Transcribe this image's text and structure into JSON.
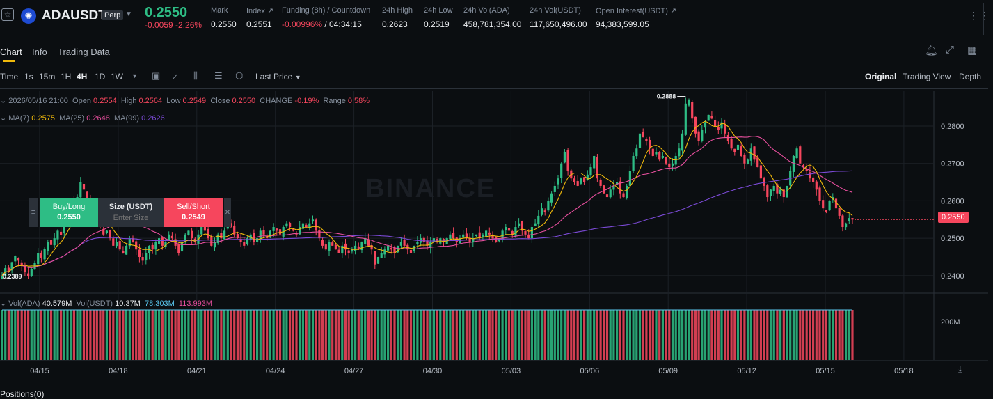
{
  "header": {
    "symbol": "ADAUSDT",
    "badge": "Perp",
    "last_price": "0.2550",
    "change": "-0.0059 -2.26%",
    "stats": [
      {
        "label": "Mark",
        "value": "0.2550",
        "value_color": "#eaecef"
      },
      {
        "label": "Index ↗",
        "value": "0.2551",
        "value_color": "#eaecef"
      },
      {
        "label": "Funding (8h) / Countdown",
        "value": "-0.00996%",
        "value2": " / 04:34:15",
        "value_color": "#f6465d"
      },
      {
        "label": "24h High",
        "value": "0.2623",
        "value_color": "#eaecef"
      },
      {
        "label": "24h Low",
        "value": "0.2519",
        "value_color": "#eaecef"
      },
      {
        "label": "24h Vol(ADA)",
        "value": "458,781,354.00",
        "value_color": "#eaecef"
      },
      {
        "label": "24h Vol(USDT)",
        "value": "117,650,496.00",
        "value_color": "#eaecef"
      },
      {
        "label": "Open Interest(USDT) ↗",
        "value": "94,383,599.05",
        "value_color": "#eaecef"
      }
    ]
  },
  "tabs": [
    "Chart",
    "Info",
    "Trading Data"
  ],
  "toolbar": {
    "intervals": [
      "Time",
      "1s",
      "15m",
      "1H",
      "4H",
      "1D",
      "1W"
    ],
    "active_interval": "4H",
    "price_type": "Last Price",
    "views": [
      "Original",
      "Trading View",
      "Depth"
    ],
    "active_view": "Original"
  },
  "ohlc": {
    "date": "2026/05/16 21:00",
    "open_label": "Open",
    "open": "0.2554",
    "high_label": "High",
    "high": "0.2564",
    "low_label": "Low",
    "low": "0.2549",
    "close_label": "Close",
    "close": "0.2550",
    "change_label": "CHANGE",
    "change": "-0.19%",
    "range_label": "Range",
    "range": "0.58%"
  },
  "ma": {
    "ma7_label": "MA(7)",
    "ma7": "0.2575",
    "ma25_label": "MA(25)",
    "ma25": "0.2648",
    "ma99_label": "MA(99)",
    "ma99": "0.2626"
  },
  "volume_info": {
    "vol_ada_label": "Vol(ADA)",
    "vol_ada": "40.579M",
    "vol_usdt_label": "Vol(USDT)",
    "vol_usdt": "10.37M",
    "vol_ma1": "78.303M",
    "vol_ma2": "113.993M"
  },
  "order_widget": {
    "buy_label": "Buy/Long",
    "buy_price": "0.2550",
    "size_label": "Size (USDT)",
    "size_placeholder": "Enter Size",
    "sell_label": "Sell/Short",
    "sell_price": "0.2549"
  },
  "watermark": "BINANCE",
  "bottom_partial": "Positions(0)",
  "colors": {
    "up": "#2ebd85",
    "down": "#f6465d",
    "ma7": "#f0b90b",
    "ma25": "#e84f9e",
    "ma99": "#7b4ad6",
    "vol_ma1": "#5ac8f0",
    "vol_ma2": "#e84f9e"
  },
  "chart_data": {
    "type": "candlestick",
    "interval": "4H",
    "x_ticks": [
      "04/15",
      "04/18",
      "04/21",
      "04/24",
      "04/27",
      "04/30",
      "05/03",
      "05/06",
      "05/09",
      "05/12",
      "05/15",
      "05/18"
    ],
    "y_ticks": [
      "0.2800",
      "0.2700",
      "0.2600",
      "0.2500",
      "0.2400"
    ],
    "ylim": [
      0.2355,
      0.2895
    ],
    "last_price": "0.2550",
    "high_marker": "0.2888",
    "low_marker": "0.2389",
    "vol_ticks": [
      "200M"
    ],
    "closes": [
      0.24,
      0.242,
      0.2412,
      0.2436,
      0.2452,
      0.244,
      0.2428,
      0.241,
      0.2398,
      0.2418,
      0.2434,
      0.246,
      0.2448,
      0.2472,
      0.249,
      0.2482,
      0.25,
      0.252,
      0.2508,
      0.254,
      0.258,
      0.26,
      0.257,
      0.261,
      0.265,
      0.263,
      0.26,
      0.259,
      0.257,
      0.255,
      0.253,
      0.251,
      0.252,
      0.25,
      0.248,
      0.249,
      0.247,
      0.246,
      0.248,
      0.25,
      0.249,
      0.247,
      0.245,
      0.244,
      0.246,
      0.248,
      0.247,
      0.249,
      0.25,
      0.248,
      0.249,
      0.251,
      0.25,
      0.248,
      0.246,
      0.249,
      0.251,
      0.252,
      0.25,
      0.249,
      0.251,
      0.253,
      0.252,
      0.25,
      0.248,
      0.249,
      0.251,
      0.25,
      0.252,
      0.254,
      0.253,
      0.251,
      0.25,
      0.249,
      0.248,
      0.25,
      0.251,
      0.249,
      0.25,
      0.252,
      0.251,
      0.25,
      0.252,
      0.253,
      0.252,
      0.251,
      0.253,
      0.254,
      0.253,
      0.252,
      0.251,
      0.253,
      0.254,
      0.253,
      0.254,
      0.255,
      0.252,
      0.25,
      0.248,
      0.247,
      0.249,
      0.248,
      0.247,
      0.246,
      0.248,
      0.247,
      0.246,
      0.247,
      0.248,
      0.247,
      0.249,
      0.25,
      0.248,
      0.247,
      0.243,
      0.245,
      0.246,
      0.247,
      0.248,
      0.247,
      0.246,
      0.248,
      0.249,
      0.248,
      0.247,
      0.246,
      0.248,
      0.249,
      0.25,
      0.249,
      0.248,
      0.249,
      0.25,
      0.249,
      0.25,
      0.249,
      0.25,
      0.251,
      0.25,
      0.249,
      0.25,
      0.251,
      0.25,
      0.249,
      0.25,
      0.251,
      0.25,
      0.251,
      0.252,
      0.251,
      0.25,
      0.249,
      0.25,
      0.252,
      0.253,
      0.252,
      0.251,
      0.253,
      0.254,
      0.252,
      0.251,
      0.25,
      0.253,
      0.254,
      0.256,
      0.258,
      0.257,
      0.26,
      0.262,
      0.264,
      0.266,
      0.27,
      0.273,
      0.268,
      0.266,
      0.265,
      0.264,
      0.266,
      0.265,
      0.267,
      0.269,
      0.272,
      0.266,
      0.264,
      0.262,
      0.261,
      0.263,
      0.264,
      0.265,
      0.262,
      0.261,
      0.264,
      0.268,
      0.272,
      0.274,
      0.278,
      0.277,
      0.276,
      0.274,
      0.272,
      0.273,
      0.271,
      0.272,
      0.27,
      0.269,
      0.27,
      0.272,
      0.274,
      0.278,
      0.286,
      0.287,
      0.282,
      0.278,
      0.276,
      0.279,
      0.281,
      0.283,
      0.282,
      0.28,
      0.279,
      0.281,
      0.278,
      0.276,
      0.274,
      0.273,
      0.275,
      0.272,
      0.27,
      0.271,
      0.274,
      0.271,
      0.269,
      0.266,
      0.264,
      0.261,
      0.263,
      0.264,
      0.262,
      0.263,
      0.261,
      0.264,
      0.268,
      0.272,
      0.274,
      0.27,
      0.269,
      0.268,
      0.266,
      0.265,
      0.263,
      0.26,
      0.258,
      0.257,
      0.26,
      0.261,
      0.258,
      0.256,
      0.253,
      0.254,
      0.2554,
      0.255
    ]
  }
}
